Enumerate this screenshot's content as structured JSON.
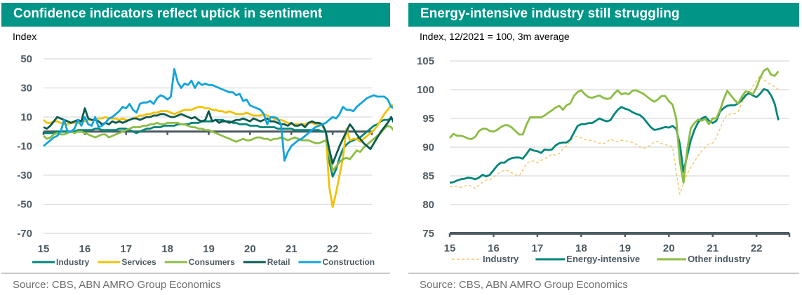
{
  "left": {
    "title": "Confidence indicators reflect uptick in sentiment",
    "unit_label": "Index",
    "source": "Source: CBS, ABN AMRO Group Economics"
  },
  "right": {
    "title": "Energy-intensive industry still struggling",
    "unit_label": "Index, 12/2021 = 100, 3m average",
    "source": "Source: CBS, ABN AMRO Group Economics"
  },
  "chart_data": [
    {
      "type": "line",
      "title": "Confidence indicators reflect uptick in sentiment",
      "ylabel": "Index",
      "xlabel": "",
      "ylim": [
        -70,
        50
      ],
      "yticks": [
        50,
        30,
        10,
        -10,
        -30,
        -50,
        -70
      ],
      "xlim": [
        2015,
        2022.95
      ],
      "xticks": [
        2015,
        2016,
        2017,
        2018,
        2019,
        2020,
        2021,
        2022
      ],
      "xtick_labels": [
        "15",
        "16",
        "17",
        "18",
        "19",
        "20",
        "21",
        "22"
      ],
      "grid": true,
      "zero_line": true,
      "legend_position": "bottom",
      "x_start": 2015.0,
      "x_step": 0.0833333,
      "series": [
        {
          "name": "Industry",
          "color": "#00857a",
          "values": [
            -1,
            -1,
            -1,
            -1,
            0,
            0,
            0,
            0,
            0,
            0,
            1,
            1,
            1,
            1,
            1,
            2,
            2,
            1,
            1,
            1,
            1,
            1,
            2,
            2,
            2,
            1,
            0,
            -1,
            0,
            1,
            2,
            2,
            3,
            3,
            3,
            4,
            4,
            4,
            4,
            5,
            5,
            5,
            5,
            6,
            6,
            6,
            7,
            7,
            7,
            7,
            8,
            8,
            8,
            7,
            7,
            6,
            6,
            5,
            5,
            5,
            4,
            4,
            4,
            3,
            3,
            3,
            3,
            3,
            2,
            2,
            2,
            2,
            2,
            1,
            1,
            1,
            1,
            1,
            1,
            1,
            1,
            0,
            0,
            -20,
            -31,
            -26,
            -18,
            -12,
            -9,
            -7,
            -6,
            -5,
            -4,
            -2,
            0,
            2,
            4,
            5,
            7,
            8,
            8,
            9,
            8,
            9,
            9,
            10,
            8,
            7,
            7,
            8,
            7,
            8,
            6,
            6,
            5,
            5,
            4,
            3,
            2,
            1,
            1,
            1,
            0
          ]
        },
        {
          "name": "Services",
          "color": "#f2c10a",
          "values": [
            8,
            6,
            6,
            7,
            7,
            6,
            5,
            5,
            6,
            6,
            6,
            7,
            7,
            8,
            8,
            8,
            9,
            9,
            10,
            9,
            9,
            9,
            8,
            9,
            8,
            8,
            9,
            10,
            11,
            11,
            12,
            12,
            13,
            13,
            14,
            14,
            14,
            13,
            12,
            13,
            14,
            15,
            15,
            15,
            16,
            17,
            17,
            16,
            16,
            15,
            15,
            14,
            14,
            13,
            14,
            13,
            12,
            12,
            12,
            13,
            12,
            11,
            11,
            11,
            12,
            11,
            10,
            9,
            8,
            8,
            7,
            6,
            5,
            5,
            5,
            5,
            5,
            6,
            6,
            5,
            5,
            4,
            0,
            -38,
            -52,
            -42,
            -30,
            -18,
            2,
            -6,
            -5,
            -5,
            -7,
            -5,
            -3,
            -1,
            1,
            4,
            8,
            12,
            15,
            18,
            18,
            20,
            20,
            16,
            12,
            10,
            7,
            4,
            5,
            9,
            12,
            15,
            16,
            14,
            10,
            6,
            3,
            1,
            2,
            3,
            4,
            5,
            4
          ]
        },
        {
          "name": "Consumers",
          "color": "#8cbd44",
          "values": [
            -3,
            -5,
            -4,
            -2,
            -1,
            -2,
            -2,
            -1,
            0,
            -1,
            0,
            0,
            -1,
            -2,
            -3,
            -4,
            -3,
            -2,
            -2,
            -4,
            -3,
            -2,
            -1,
            0,
            1,
            2,
            3,
            3,
            3,
            4,
            4,
            5,
            5,
            6,
            5,
            5,
            6,
            6,
            6,
            6,
            5,
            5,
            4,
            3,
            3,
            2,
            2,
            1,
            1,
            0,
            -1,
            -2,
            -3,
            -4,
            -5,
            -6,
            -7,
            -6,
            -5,
            -6,
            -6,
            -5,
            -4,
            -4,
            -5,
            -5,
            -6,
            -5,
            -5,
            -4,
            -5,
            -6,
            -5,
            -4,
            -5,
            -6,
            -6,
            -6,
            -7,
            -8,
            -8,
            -7,
            -6,
            -15,
            -27,
            -24,
            -21,
            -19,
            -18,
            -19,
            -16,
            -13,
            -14,
            -11,
            -9,
            -7,
            -5,
            -3,
            -1,
            2,
            4,
            3,
            0,
            -2,
            -5,
            -7,
            -8,
            -12,
            -13,
            -12,
            -14,
            -17,
            -20,
            -22,
            -25,
            -24,
            -27,
            -27,
            -29,
            -31,
            -33,
            -32,
            -35,
            -33,
            -31,
            -29,
            -25
          ]
        },
        {
          "name": "Retail",
          "color": "#0b5a50",
          "values": [
            3,
            2,
            4,
            7,
            10,
            9,
            8,
            7,
            6,
            7,
            8,
            7,
            16,
            9,
            8,
            8,
            7,
            5,
            6,
            5,
            7,
            6,
            7,
            6,
            7,
            8,
            9,
            9,
            8,
            9,
            10,
            10,
            11,
            11,
            12,
            12,
            11,
            10,
            10,
            11,
            12,
            11,
            10,
            9,
            10,
            8,
            7,
            8,
            14,
            7,
            8,
            6,
            7,
            7,
            6,
            7,
            8,
            8,
            9,
            8,
            7,
            9,
            8,
            7,
            8,
            9,
            7,
            7,
            6,
            5,
            5,
            4,
            6,
            4,
            4,
            5,
            3,
            6,
            7,
            6,
            6,
            5,
            0,
            -12,
            -22,
            -16,
            -10,
            -5,
            0,
            5,
            2,
            -2,
            -5,
            -8,
            -10,
            -12,
            -8,
            -4,
            0,
            3,
            6,
            10,
            5,
            3,
            2,
            4,
            3,
            3,
            4,
            1,
            3,
            2,
            3,
            4,
            2,
            2,
            1,
            2,
            3,
            4,
            5,
            3,
            1,
            2,
            4,
            6,
            5
          ]
        },
        {
          "name": "Construction",
          "color": "#12a4dc",
          "values": [
            -10,
            -8,
            -6,
            -4,
            -3,
            0,
            8,
            0,
            0,
            2,
            8,
            4,
            10,
            5,
            4,
            10,
            3,
            4,
            6,
            9,
            10,
            12,
            14,
            17,
            16,
            19,
            15,
            13,
            19,
            20,
            20,
            21,
            19,
            23,
            25,
            24,
            22,
            24,
            43,
            34,
            30,
            33,
            32,
            35,
            30,
            34,
            32,
            33,
            32,
            32,
            31,
            30,
            29,
            28,
            27,
            27,
            25,
            26,
            21,
            22,
            18,
            17,
            16,
            15,
            12,
            5,
            10,
            10,
            9,
            5,
            -20,
            -14,
            -10,
            -8,
            -6,
            -5,
            -3,
            -1,
            1,
            3,
            4,
            5,
            6,
            8,
            10,
            9,
            12,
            17,
            15,
            15,
            14,
            17,
            19,
            21,
            23,
            24,
            25,
            24,
            24,
            24,
            22,
            17,
            16,
            18,
            19,
            18,
            17,
            15,
            14,
            13,
            13,
            13
          ]
        }
      ]
    },
    {
      "type": "line",
      "title": "Energy-intensive industry still struggling",
      "ylabel": "Index, 12/2021 = 100, 3m average",
      "xlabel": "",
      "ylim": [
        75,
        105
      ],
      "yticks": [
        105,
        100,
        95,
        90,
        85,
        80,
        75
      ],
      "xlim": [
        2015,
        2022.75
      ],
      "xticks": [
        2015,
        2016,
        2017,
        2018,
        2019,
        2020,
        2021,
        2022
      ],
      "xtick_labels": [
        "15",
        "16",
        "17",
        "18",
        "19",
        "20",
        "21",
        "22"
      ],
      "grid": true,
      "legend_position": "bottom",
      "x_start": 2015.0,
      "x_step": 0.0833333,
      "series": [
        {
          "name": "Industry",
          "color": "#f2c86a",
          "dashed": true,
          "values": [
            83.1,
            83.1,
            83.2,
            83.0,
            83.2,
            83.4,
            83.2,
            82.8,
            83.4,
            83.9,
            84.3,
            84.3,
            84.8,
            85.3,
            85.7,
            86.0,
            85.9,
            85.5,
            85.2,
            85.0,
            86.0,
            87.2,
            87.5,
            87.6,
            87.3,
            87.7,
            88.0,
            88.3,
            88.8,
            88.6,
            88.9,
            89.7,
            90.2,
            91.0,
            91.7,
            91.9,
            91.6,
            91.3,
            91.2,
            91.2,
            90.9,
            90.7,
            90.6,
            90.9,
            91.4,
            91.1,
            91.0,
            91.2,
            91.1,
            91.0,
            90.8,
            90.5,
            90.1,
            89.8,
            89.9,
            90.4,
            90.9,
            91.0,
            90.6,
            90.4,
            90.3,
            90.1,
            85.7,
            81.8,
            83.7,
            85.3,
            86.5,
            87.5,
            88.5,
            89.3,
            90.0,
            90.6,
            90.7,
            91.7,
            93.2,
            94.7,
            95.6,
            95.8,
            95.8,
            96.2,
            97.7,
            98.7,
            99.6,
            100.6,
            101.6,
            102.5,
            101.7,
            101.2,
            100.9,
            100.5,
            100.0
          ]
        },
        {
          "name": "Energy-intensive",
          "color": "#00857a",
          "values": [
            83.8,
            83.9,
            84.2,
            84.4,
            84.5,
            84.7,
            84.6,
            84.4,
            84.7,
            85.2,
            84.9,
            85.2,
            86.0,
            86.8,
            87.3,
            87.3,
            87.8,
            88.1,
            88.2,
            88.2,
            88.0,
            88.8,
            89.7,
            89.4,
            89.3,
            89.0,
            89.6,
            89.5,
            89.6,
            90.3,
            90.7,
            90.8,
            90.8,
            91.3,
            92.5,
            93.7,
            94.0,
            94.0,
            94.2,
            94.2,
            94.6,
            95.0,
            94.7,
            94.5,
            94.7,
            95.7,
            96.5,
            97.0,
            96.7,
            96.5,
            96.1,
            95.8,
            95.6,
            95.1,
            94.3,
            93.5,
            93.0,
            93.1,
            93.3,
            93.5,
            93.4,
            93.7,
            93.2,
            90.5,
            85.7,
            88.5,
            91.2,
            93.0,
            94.3,
            95.0,
            95.3,
            94.6,
            94.2,
            94.6,
            96.2,
            96.8,
            97.2,
            97.3,
            97.3,
            97.6,
            98.2,
            99.0,
            99.4,
            99.0,
            98.7,
            99.3,
            100.1,
            99.9,
            99.0,
            97.5,
            94.7
          ]
        },
        {
          "name": "Other industry",
          "color": "#8cbd44",
          "values": [
            91.6,
            92.3,
            92.0,
            92.0,
            91.8,
            91.5,
            91.4,
            91.8,
            92.8,
            93.2,
            93.2,
            92.8,
            92.7,
            93.0,
            93.5,
            93.8,
            93.8,
            93.4,
            92.8,
            92.2,
            92.2,
            93.9,
            95.2,
            95.2,
            95.2,
            95.2,
            95.5,
            96.0,
            96.4,
            96.9,
            97.2,
            96.5,
            97.3,
            97.6,
            98.9,
            99.6,
            99.9,
            99.2,
            98.7,
            98.6,
            98.8,
            99.0,
            98.6,
            98.4,
            98.5,
            99.3,
            99.9,
            99.2,
            99.4,
            99.2,
            99.8,
            99.9,
            99.6,
            99.3,
            98.8,
            98.3,
            97.9,
            98.3,
            98.9,
            98.9,
            98.0,
            97.4,
            95.0,
            87.5,
            83.8,
            89.5,
            93.3,
            94.2,
            94.8,
            94.6,
            94.9,
            94.0,
            95.0,
            95.0,
            96.4,
            98.3,
            99.8,
            99.0,
            98.2,
            97.6,
            98.8,
            99.7,
            99.6,
            99.2,
            100.4,
            102.1,
            103.3,
            103.7,
            102.6,
            102.4,
            103.2
          ]
        }
      ]
    }
  ]
}
